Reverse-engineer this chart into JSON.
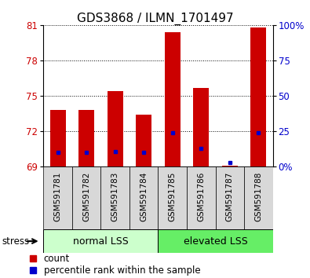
{
  "title": "GDS3868 / ILMN_1701497",
  "categories": [
    "GSM591781",
    "GSM591782",
    "GSM591783",
    "GSM591784",
    "GSM591785",
    "GSM591786",
    "GSM591787",
    "GSM591788"
  ],
  "red_values": [
    73.8,
    73.8,
    75.4,
    73.4,
    80.4,
    75.7,
    69.1,
    80.8
  ],
  "blue_values": [
    70.2,
    70.2,
    70.3,
    70.2,
    71.9,
    70.55,
    69.35,
    71.9
  ],
  "ymin": 69,
  "ymax": 81,
  "yticks": [
    69,
    72,
    75,
    78,
    81
  ],
  "y2ticks": [
    0,
    25,
    50,
    75,
    100
  ],
  "bar_width": 0.55,
  "red_color": "#cc0000",
  "blue_color": "#0000cc",
  "group1_label": "normal LSS",
  "group2_label": "elevated LSS",
  "group1_color": "#ccffcc",
  "group2_color": "#66ee66",
  "stress_label": "stress",
  "legend_red": "count",
  "legend_blue": "percentile rank within the sample",
  "title_fontsize": 11,
  "tick_fontsize": 8.5,
  "cat_fontsize": 7.5,
  "group_fontsize": 9
}
